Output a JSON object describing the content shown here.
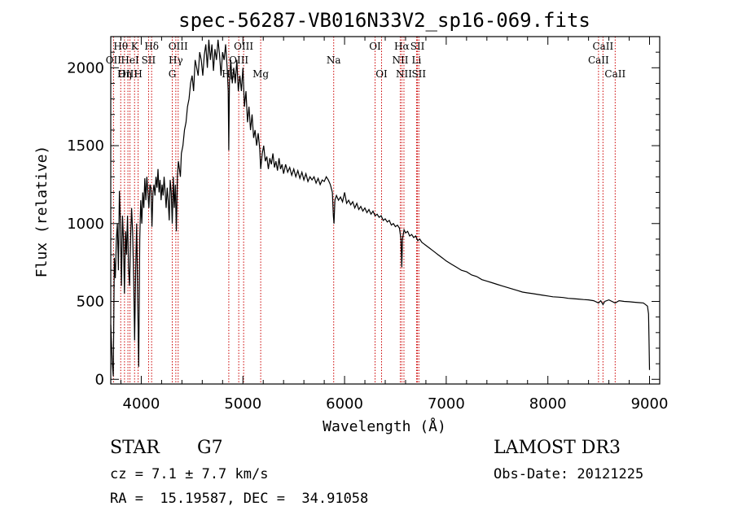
{
  "chart_data": {
    "type": "line",
    "title": "spec-56287-VB016N33V2_sp16-069.fits",
    "xlabel": "Wavelength (Å)",
    "ylabel": "Flux (relative)",
    "xlim": [
      3700,
      9100
    ],
    "ylim": [
      -30,
      2200
    ],
    "x_ticks": [
      4000,
      5000,
      6000,
      7000,
      8000,
      9000
    ],
    "y_ticks": [
      0,
      500,
      1000,
      1500,
      2000
    ],
    "series": [
      {
        "name": "flux",
        "points": [
          [
            3700,
            350
          ],
          [
            3715,
            100
          ],
          [
            3725,
            20
          ],
          [
            3735,
            780
          ],
          [
            3745,
            650
          ],
          [
            3755,
            900
          ],
          [
            3765,
            1000
          ],
          [
            3775,
            700
          ],
          [
            3785,
            1210
          ],
          [
            3795,
            1000
          ],
          [
            3805,
            600
          ],
          [
            3815,
            1050
          ],
          [
            3825,
            900
          ],
          [
            3835,
            550
          ],
          [
            3845,
            950
          ],
          [
            3855,
            800
          ],
          [
            3865,
            1050
          ],
          [
            3875,
            720
          ],
          [
            3885,
            600
          ],
          [
            3895,
            900
          ],
          [
            3905,
            1100
          ],
          [
            3915,
            950
          ],
          [
            3925,
            650
          ],
          [
            3935,
            250
          ],
          [
            3945,
            700
          ],
          [
            3955,
            1000
          ],
          [
            3965,
            500
          ],
          [
            3975,
            80
          ],
          [
            3985,
            900
          ],
          [
            3995,
            1150
          ],
          [
            4005,
            1000
          ],
          [
            4015,
            1200
          ],
          [
            4025,
            1100
          ],
          [
            4035,
            1290
          ],
          [
            4045,
            1150
          ],
          [
            4055,
            1300
          ],
          [
            4065,
            1200
          ],
          [
            4075,
            1100
          ],
          [
            4085,
            1250
          ],
          [
            4095,
            1230
          ],
          [
            4105,
            980
          ],
          [
            4115,
            1200
          ],
          [
            4125,
            1250
          ],
          [
            4135,
            1180
          ],
          [
            4145,
            1300
          ],
          [
            4155,
            1230
          ],
          [
            4165,
            1350
          ],
          [
            4175,
            1200
          ],
          [
            4185,
            1280
          ],
          [
            4195,
            1150
          ],
          [
            4205,
            1250
          ],
          [
            4215,
            1180
          ],
          [
            4225,
            1300
          ],
          [
            4235,
            1200
          ],
          [
            4245,
            1100
          ],
          [
            4255,
            1230
          ],
          [
            4265,
            1150
          ],
          [
            4275,
            1020
          ],
          [
            4285,
            1280
          ],
          [
            4295,
            1200
          ],
          [
            4305,
            1000
          ],
          [
            4315,
            1300
          ],
          [
            4325,
            1100
          ],
          [
            4335,
            1250
          ],
          [
            4345,
            950
          ],
          [
            4355,
            1300
          ],
          [
            4365,
            1400
          ],
          [
            4375,
            1350
          ],
          [
            4385,
            1300
          ],
          [
            4395,
            1450
          ],
          [
            4410,
            1500
          ],
          [
            4425,
            1600
          ],
          [
            4440,
            1650
          ],
          [
            4455,
            1750
          ],
          [
            4470,
            1800
          ],
          [
            4485,
            1900
          ],
          [
            4500,
            1950
          ],
          [
            4515,
            1850
          ],
          [
            4530,
            2050
          ],
          [
            4545,
            2000
          ],
          [
            4560,
            1950
          ],
          [
            4575,
            2100
          ],
          [
            4590,
            2050
          ],
          [
            4605,
            1950
          ],
          [
            4620,
            2080
          ],
          [
            4635,
            2150
          ],
          [
            4650,
            2000
          ],
          [
            4665,
            2180
          ],
          [
            4680,
            2050
          ],
          [
            4695,
            2150
          ],
          [
            4710,
            1980
          ],
          [
            4725,
            2120
          ],
          [
            4740,
            2050
          ],
          [
            4755,
            2180
          ],
          [
            4770,
            2080
          ],
          [
            4785,
            1950
          ],
          [
            4800,
            2100
          ],
          [
            4815,
            2050
          ],
          [
            4830,
            2150
          ],
          [
            4845,
            2000
          ],
          [
            4855,
            1850
          ],
          [
            4861,
            1470
          ],
          [
            4867,
            1900
          ],
          [
            4880,
            2050
          ],
          [
            4895,
            1900
          ],
          [
            4910,
            2000
          ],
          [
            4925,
            1900
          ],
          [
            4940,
            2050
          ],
          [
            4955,
            1850
          ],
          [
            4970,
            1950
          ],
          [
            4985,
            1850
          ],
          [
            5000,
            2000
          ],
          [
            5015,
            1750
          ],
          [
            5030,
            1850
          ],
          [
            5045,
            1650
          ],
          [
            5060,
            1750
          ],
          [
            5075,
            1600
          ],
          [
            5090,
            1700
          ],
          [
            5105,
            1550
          ],
          [
            5120,
            1600
          ],
          [
            5135,
            1500
          ],
          [
            5150,
            1580
          ],
          [
            5165,
            1480
          ],
          [
            5175,
            1350
          ],
          [
            5190,
            1450
          ],
          [
            5205,
            1500
          ],
          [
            5220,
            1400
          ],
          [
            5235,
            1430
          ],
          [
            5250,
            1350
          ],
          [
            5265,
            1420
          ],
          [
            5280,
            1380
          ],
          [
            5295,
            1450
          ],
          [
            5310,
            1360
          ],
          [
            5325,
            1400
          ],
          [
            5340,
            1340
          ],
          [
            5355,
            1420
          ],
          [
            5370,
            1350
          ],
          [
            5385,
            1380
          ],
          [
            5400,
            1320
          ],
          [
            5420,
            1380
          ],
          [
            5440,
            1330
          ],
          [
            5460,
            1360
          ],
          [
            5480,
            1310
          ],
          [
            5500,
            1350
          ],
          [
            5520,
            1300
          ],
          [
            5540,
            1340
          ],
          [
            5560,
            1290
          ],
          [
            5580,
            1330
          ],
          [
            5600,
            1280
          ],
          [
            5620,
            1320
          ],
          [
            5640,
            1270
          ],
          [
            5660,
            1300
          ],
          [
            5680,
            1280
          ],
          [
            5700,
            1300
          ],
          [
            5720,
            1260
          ],
          [
            5740,
            1290
          ],
          [
            5760,
            1250
          ],
          [
            5780,
            1280
          ],
          [
            5800,
            1270
          ],
          [
            5820,
            1300
          ],
          [
            5840,
            1280
          ],
          [
            5860,
            1250
          ],
          [
            5880,
            1200
          ],
          [
            5890,
            1050
          ],
          [
            5896,
            1000
          ],
          [
            5905,
            1150
          ],
          [
            5920,
            1180
          ],
          [
            5940,
            1150
          ],
          [
            5960,
            1170
          ],
          [
            5980,
            1140
          ],
          [
            6000,
            1200
          ],
          [
            6020,
            1130
          ],
          [
            6040,
            1150
          ],
          [
            6060,
            1120
          ],
          [
            6080,
            1140
          ],
          [
            6100,
            1100
          ],
          [
            6120,
            1130
          ],
          [
            6140,
            1090
          ],
          [
            6160,
            1110
          ],
          [
            6180,
            1080
          ],
          [
            6200,
            1100
          ],
          [
            6220,
            1070
          ],
          [
            6240,
            1090
          ],
          [
            6260,
            1060
          ],
          [
            6280,
            1080
          ],
          [
            6300,
            1050
          ],
          [
            6320,
            1060
          ],
          [
            6340,
            1040
          ],
          [
            6360,
            1050
          ],
          [
            6380,
            1020
          ],
          [
            6400,
            1030
          ],
          [
            6420,
            1010
          ],
          [
            6440,
            1020
          ],
          [
            6460,
            990
          ],
          [
            6480,
            1000
          ],
          [
            6500,
            980
          ],
          [
            6520,
            990
          ],
          [
            6540,
            970
          ],
          [
            6555,
            900
          ],
          [
            6563,
            720
          ],
          [
            6570,
            900
          ],
          [
            6585,
            960
          ],
          [
            6600,
            940
          ],
          [
            6620,
            950
          ],
          [
            6640,
            920
          ],
          [
            6660,
            930
          ],
          [
            6680,
            910
          ],
          [
            6700,
            920
          ],
          [
            6720,
            890
          ],
          [
            6740,
            900
          ],
          [
            6760,
            880
          ],
          [
            6780,
            870
          ],
          [
            6800,
            860
          ],
          [
            6820,
            850
          ],
          [
            6840,
            840
          ],
          [
            6860,
            830
          ],
          [
            6880,
            820
          ],
          [
            6900,
            810
          ],
          [
            6920,
            800
          ],
          [
            6940,
            790
          ],
          [
            6960,
            780
          ],
          [
            6980,
            770
          ],
          [
            7000,
            760
          ],
          [
            7050,
            740
          ],
          [
            7100,
            720
          ],
          [
            7150,
            700
          ],
          [
            7200,
            690
          ],
          [
            7250,
            670
          ],
          [
            7300,
            660
          ],
          [
            7350,
            640
          ],
          [
            7400,
            630
          ],
          [
            7450,
            620
          ],
          [
            7500,
            610
          ],
          [
            7550,
            600
          ],
          [
            7600,
            590
          ],
          [
            7650,
            580
          ],
          [
            7700,
            570
          ],
          [
            7750,
            560
          ],
          [
            7800,
            555
          ],
          [
            7850,
            550
          ],
          [
            7900,
            545
          ],
          [
            7950,
            540
          ],
          [
            8000,
            535
          ],
          [
            8050,
            530
          ],
          [
            8100,
            528
          ],
          [
            8150,
            525
          ],
          [
            8200,
            520
          ],
          [
            8250,
            518
          ],
          [
            8300,
            515
          ],
          [
            8350,
            512
          ],
          [
            8400,
            510
          ],
          [
            8450,
            505
          ],
          [
            8498,
            490
          ],
          [
            8520,
            505
          ],
          [
            8542,
            480
          ],
          [
            8560,
            500
          ],
          [
            8600,
            510
          ],
          [
            8662,
            490
          ],
          [
            8700,
            505
          ],
          [
            8750,
            500
          ],
          [
            8800,
            498
          ],
          [
            8850,
            495
          ],
          [
            8900,
            492
          ],
          [
            8940,
            490
          ],
          [
            8960,
            480
          ],
          [
            8980,
            470
          ],
          [
            8990,
            420
          ],
          [
            8995,
            250
          ],
          [
            9000,
            60
          ]
        ]
      }
    ],
    "lines": [
      {
        "label": "Hθ",
        "x": 3798,
        "row": 0
      },
      {
        "label": "OII",
        "x": 3727,
        "row": 1
      },
      {
        "label": "OIII",
        "x": 3869,
        "row": 2
      },
      {
        "label": "K",
        "x": 3934,
        "row": 0
      },
      {
        "label": "HeI",
        "x": 3889,
        "row": 1
      },
      {
        "label": "Hη",
        "x": 3835,
        "row": 2
      },
      {
        "label": "H",
        "x": 3969,
        "row": 2
      },
      {
        "label": "SII",
        "x": 4072,
        "row": 1
      },
      {
        "label": "Hδ",
        "x": 4102,
        "row": 0
      },
      {
        "label": "OIII",
        "x": 4363,
        "row": 0
      },
      {
        "label": "Hγ",
        "x": 4340,
        "row": 1
      },
      {
        "label": "G",
        "x": 4305,
        "row": 2
      },
      {
        "label": "OIII",
        "x": 5007,
        "row": 0
      },
      {
        "label": "OIII",
        "x": 4959,
        "row": 1
      },
      {
        "label": "Hβ",
        "x": 4861,
        "row": 2
      },
      {
        "label": "Mg",
        "x": 5175,
        "row": 2
      },
      {
        "label": "Na",
        "x": 5893,
        "row": 1
      },
      {
        "label": "OI",
        "x": 6300,
        "row": 0
      },
      {
        "label": "OI",
        "x": 6364,
        "row": 2
      },
      {
        "label": "Hα",
        "x": 6563,
        "row": 0
      },
      {
        "label": "NII",
        "x": 6548,
        "row": 1
      },
      {
        "label": "NII",
        "x": 6584,
        "row": 2
      },
      {
        "label": "SII",
        "x": 6717,
        "row": 0
      },
      {
        "label": "Li",
        "x": 6708,
        "row": 1
      },
      {
        "label": "SII",
        "x": 6731,
        "row": 2
      },
      {
        "label": "CaII",
        "x": 8542,
        "row": 0
      },
      {
        "label": "CaII",
        "x": 8498,
        "row": 1
      },
      {
        "label": "CaII",
        "x": 8662,
        "row": 2
      }
    ]
  },
  "info": {
    "class": "STAR",
    "subclass": "G7",
    "survey": "LAMOST DR3",
    "cz": "cz = 7.1 ± 7.7 km/s",
    "obs_date": "Obs-Date: 20121225",
    "coords": "RA =  15.19587, DEC =  34.91058"
  }
}
